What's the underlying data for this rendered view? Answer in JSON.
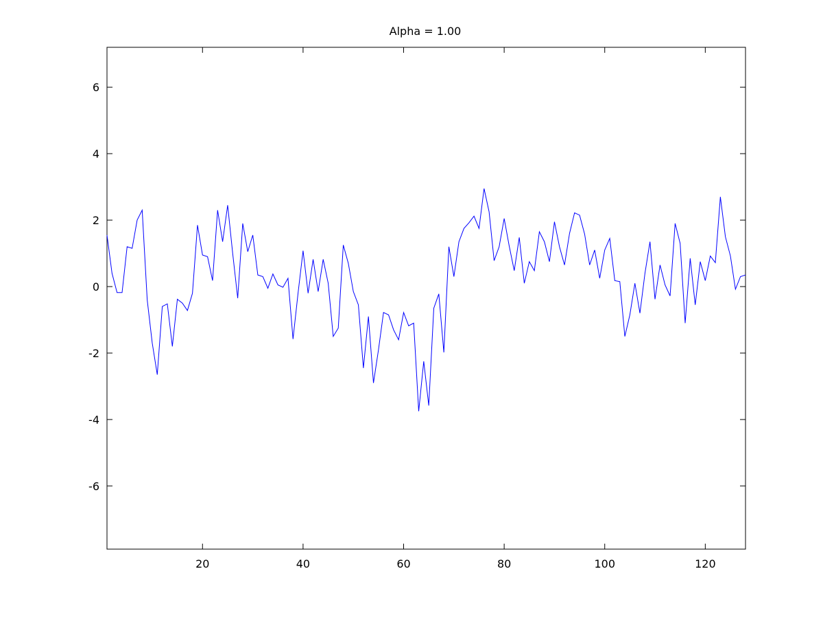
{
  "colors": {
    "background": "#ffffff",
    "axes": "#000000",
    "series": "#0000ff"
  },
  "chart_data": {
    "type": "line",
    "title": "Alpha = 1.00",
    "xlabel": "",
    "ylabel": "",
    "xlim": [
      1,
      128
    ],
    "ylim": [
      -7.9,
      7.2
    ],
    "xticks": [
      20,
      40,
      60,
      80,
      100,
      120
    ],
    "yticks": [
      -6,
      -4,
      -2,
      0,
      2,
      4,
      6
    ],
    "grid": false,
    "legend": "none",
    "series": [
      {
        "x": [
          1,
          2,
          3,
          4,
          5,
          6,
          7,
          8,
          9,
          10,
          11,
          12,
          13,
          14,
          15,
          16,
          17,
          18,
          19,
          20,
          21,
          22,
          23,
          24,
          25,
          26,
          27,
          28,
          29,
          30,
          31,
          32,
          33,
          34,
          35,
          36,
          37,
          38,
          39,
          40,
          41,
          42,
          43,
          44,
          45,
          46,
          47,
          48,
          49,
          50,
          51,
          52,
          53,
          54,
          55,
          56,
          57,
          58,
          59,
          60,
          61,
          62,
          63,
          64,
          65,
          66,
          67,
          68,
          69,
          70,
          71,
          72,
          73,
          74,
          75,
          76,
          77,
          78,
          79,
          80,
          81,
          82,
          83,
          84,
          85,
          86,
          87,
          88,
          89,
          90,
          91,
          92,
          93,
          94,
          95,
          96,
          97,
          98,
          99,
          100,
          101,
          102,
          103,
          104,
          105,
          106,
          107,
          108,
          109,
          110,
          111,
          112,
          113,
          114,
          115,
          116,
          117,
          118,
          119,
          120,
          121,
          122,
          123,
          124,
          125,
          126,
          127,
          128
        ],
        "values": [
          1.55,
          0.4,
          -0.18,
          -0.18,
          1.2,
          1.15,
          2.0,
          2.3,
          -0.4,
          -1.7,
          -2.65,
          -0.6,
          -0.52,
          -1.8,
          -0.38,
          -0.5,
          -0.72,
          -0.2,
          1.85,
          0.95,
          0.9,
          0.18,
          2.3,
          1.35,
          2.45,
          1.0,
          -0.35,
          1.9,
          1.05,
          1.55,
          0.35,
          0.3,
          -0.05,
          0.38,
          0.05,
          -0.02,
          0.25,
          -1.58,
          -0.2,
          1.08,
          -0.2,
          0.82,
          -0.15,
          0.82,
          0.1,
          -1.5,
          -1.25,
          1.25,
          0.7,
          -0.15,
          -0.55,
          -2.45,
          -0.9,
          -2.9,
          -1.9,
          -0.78,
          -0.85,
          -1.3,
          -1.6,
          -0.78,
          -1.18,
          -1.1,
          -3.75,
          -2.25,
          -3.58,
          -0.65,
          -0.22,
          -1.98,
          1.2,
          0.3,
          1.35,
          1.75,
          1.92,
          2.12,
          1.75,
          2.95,
          2.25,
          0.78,
          1.2,
          2.05,
          1.22,
          0.48,
          1.48,
          0.1,
          0.75,
          0.48,
          1.65,
          1.35,
          0.75,
          1.95,
          1.2,
          0.65,
          1.6,
          2.22,
          2.15,
          1.58,
          0.65,
          1.1,
          0.25,
          1.1,
          1.45,
          0.18,
          0.15,
          -1.5,
          -0.85,
          0.1,
          -0.8,
          0.4,
          1.35,
          -0.38,
          0.65,
          0.05,
          -0.28,
          1.9,
          1.3,
          -1.1,
          0.85,
          -0.55,
          0.75,
          0.18,
          0.92,
          0.72,
          2.7,
          1.5,
          0.92,
          -0.08,
          0.3,
          0.35
        ]
      }
    ]
  }
}
